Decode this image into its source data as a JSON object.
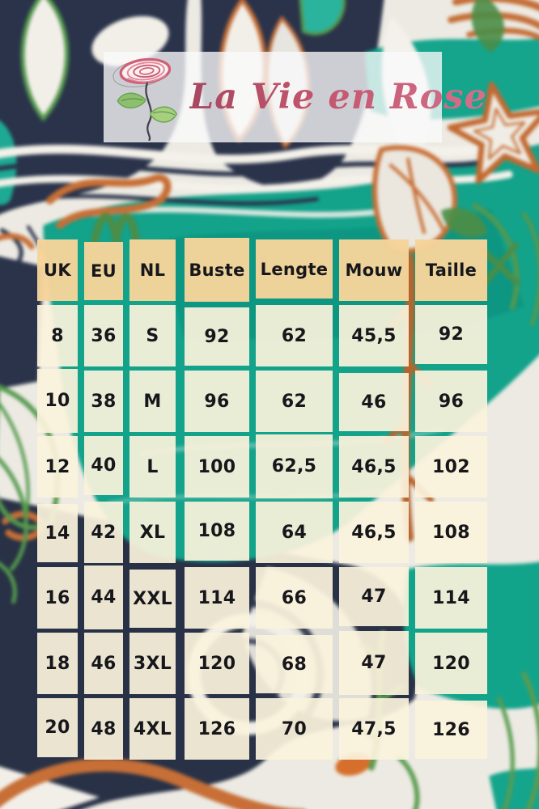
{
  "brand": {
    "name": "La Vie en Rose",
    "title_color": "#c25672",
    "logo_icon": "hand-drawn-rose"
  },
  "banner": {
    "background": "rgba(250,250,251,0.78)"
  },
  "chart_data": {
    "type": "table",
    "columns": [
      "UK",
      "EU",
      "NL",
      "Buste",
      "Lengte",
      "Mouw",
      "Taille"
    ],
    "rows": [
      [
        "8",
        "36",
        "S",
        "92",
        "62",
        "45,5",
        "92"
      ],
      [
        "10",
        "38",
        "M",
        "96",
        "62",
        "46",
        "96"
      ],
      [
        "12",
        "40",
        "L",
        "100",
        "62,5",
        "46,5",
        "102"
      ],
      [
        "14",
        "42",
        "XL",
        "108",
        "64",
        "46,5",
        "108"
      ],
      [
        "16",
        "44",
        "XXL",
        "114",
        "66",
        "47",
        "114"
      ],
      [
        "18",
        "46",
        "3XL",
        "120",
        "68",
        "47",
        "120"
      ],
      [
        "20",
        "48",
        "4XL",
        "126",
        "70",
        "47,5",
        "126"
      ]
    ],
    "header_cell_color": "#f5d49a",
    "data_cell_color": "#faf2db",
    "text_color": "#17171b",
    "grid_on": false,
    "legend": "none"
  },
  "background_palette": {
    "teal": "#1aa38c",
    "teal_dark": "#0f8d7a",
    "navy": "#2a3349",
    "rust_orange": "#c06b35",
    "leaf_green": "#579850",
    "offwhite": "#eceae3"
  }
}
